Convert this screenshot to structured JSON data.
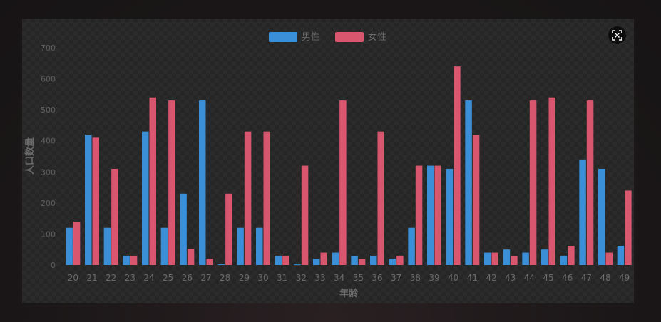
{
  "chart_data": {
    "type": "bar",
    "categories": [
      "20",
      "21",
      "22",
      "23",
      "24",
      "25",
      "26",
      "27",
      "28",
      "29",
      "30",
      "31",
      "32",
      "33",
      "34",
      "35",
      "36",
      "37",
      "38",
      "39",
      "40",
      "41",
      "42",
      "43",
      "44",
      "45",
      "46",
      "47",
      "48",
      "49"
    ],
    "series": [
      {
        "name": "男性",
        "color": "#3a8fd6",
        "values": [
          120,
          420,
          120,
          30,
          430,
          120,
          230,
          530,
          3,
          120,
          120,
          30,
          2,
          20,
          40,
          28,
          30,
          20,
          120,
          320,
          310,
          530,
          40,
          50,
          40,
          50,
          30,
          340,
          310,
          62
        ]
      },
      {
        "name": "女性",
        "color": "#d9566f",
        "values": [
          140,
          410,
          310,
          30,
          540,
          530,
          52,
          20,
          230,
          430,
          430,
          30,
          320,
          40,
          530,
          20,
          430,
          30,
          320,
          320,
          640,
          420,
          40,
          28,
          530,
          540,
          62,
          530,
          40,
          240
        ]
      }
    ],
    "xlabel": "年龄",
    "ylabel": "人口数量",
    "ylim": [
      0,
      700
    ],
    "yticks": [
      0,
      100,
      200,
      300,
      400,
      500,
      600,
      700
    ],
    "legend_position": "top-center",
    "grid": false
  },
  "toolbar": {
    "expand_icon": "fullscreen-expand-icon"
  }
}
